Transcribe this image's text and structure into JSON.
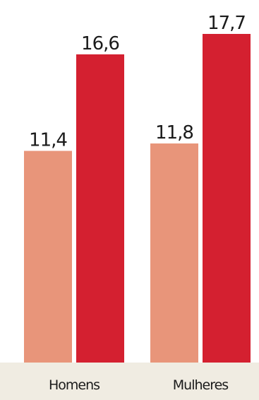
{
  "chart_data": {
    "type": "bar",
    "categories": [
      "Homens",
      "Mulheres"
    ],
    "series": [
      {
        "values": [
          11.4,
          11.8
        ],
        "labels": [
          "11,4",
          "11,8"
        ],
        "color": "#e8957a"
      },
      {
        "values": [
          16.6,
          17.7
        ],
        "labels": [
          "16,6",
          "17,7"
        ],
        "color": "#d42030"
      }
    ],
    "ylim": [
      0,
      17.7
    ],
    "grid": false,
    "legend": "none"
  },
  "colors": {
    "baseline_band": "#f0ece2"
  }
}
